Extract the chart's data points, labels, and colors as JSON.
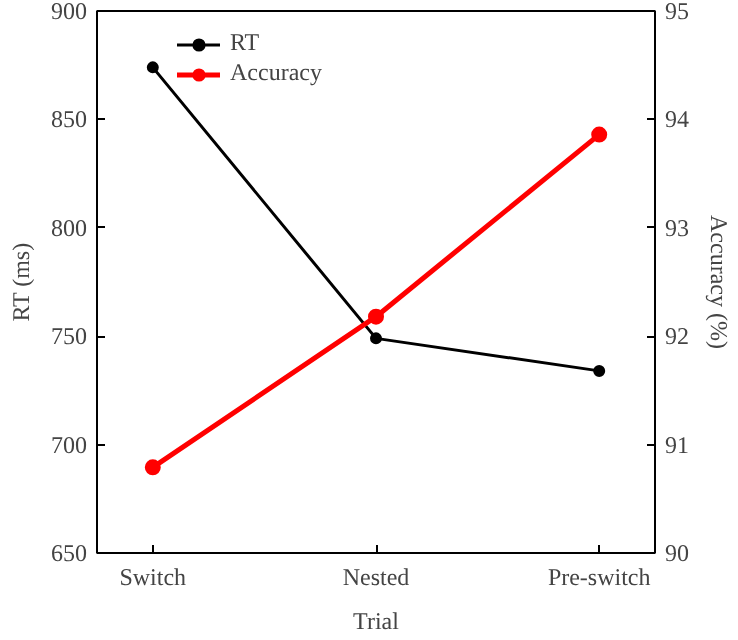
{
  "chart_data": {
    "type": "line",
    "categories": [
      "Switch",
      "Nested",
      "Pre-switch"
    ],
    "xlabel": "Trial",
    "ylabel": "RT (ms)",
    "y2label": "Accuracy (%)",
    "series": [
      {
        "name": "RT",
        "color": "#000000",
        "values": [
          874,
          749,
          734
        ]
      },
      {
        "name": "Accuracy",
        "color": "#ff0000",
        "values": [
          90.79,
          92.18,
          93.86
        ],
        "axis": "y2"
      }
    ],
    "ylim": [
      650,
      900
    ],
    "yticks": [
      650,
      700,
      750,
      800,
      850,
      900
    ],
    "y2lim": [
      90,
      95
    ],
    "y2ticks": [
      90,
      91,
      92,
      93,
      94,
      95
    ],
    "grid": false,
    "legend": "top",
    "marker": "circle",
    "line_style": "solid"
  }
}
